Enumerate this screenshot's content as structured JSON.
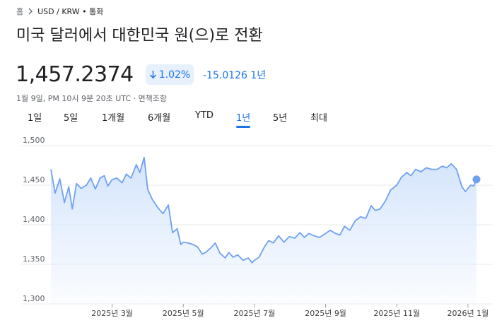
{
  "breadcrumb": {
    "home": "홈",
    "path": "USD / KRW • 통화"
  },
  "title": "미국 달러에서 대한민국 원(으)로 전환",
  "rate": "1,457.2374",
  "badge": {
    "label": "1.02%",
    "direction": "down"
  },
  "change": "-15.0126 1년",
  "timestamp": "1월 9일, PM 10시 9분 20초 UTC · 면책조항",
  "tabs": [
    {
      "label": "1일",
      "active": false
    },
    {
      "label": "5일",
      "active": false
    },
    {
      "label": "1개월",
      "active": false
    },
    {
      "label": "6개월",
      "active": false
    },
    {
      "label": "YTD",
      "active": false
    },
    {
      "label": "1년",
      "active": true
    },
    {
      "label": "5년",
      "active": false
    },
    {
      "label": "최대",
      "active": false
    }
  ],
  "colors": {
    "accent": "#1a73e8",
    "line": "#6ea1ef",
    "area_top": "#d2e3fc"
  },
  "chart_data": {
    "type": "area",
    "ylim": [
      1300,
      1500
    ],
    "y_ticks": [
      "1,500",
      "1,450",
      "1,400",
      "1,350",
      "1,300"
    ],
    "y_tick_values": [
      1500,
      1450,
      1400,
      1350,
      1300
    ],
    "x_labels": [
      "2025년 3월",
      "2025년 5월",
      "2025년 7월",
      "2025년 9월",
      "2025년 11월",
      "2026년 1월"
    ],
    "x_label_positions": [
      1.72,
      3.72,
      5.72,
      7.72,
      9.72,
      11.72
    ],
    "x_range": [
      0,
      12
    ],
    "grid": true,
    "series": [
      {
        "x": [
          0,
          0.12,
          0.25,
          0.38,
          0.5,
          0.6,
          0.72,
          0.85,
          1.0,
          1.12,
          1.25,
          1.38,
          1.5,
          1.6,
          1.72,
          1.85,
          2.0,
          2.12,
          2.25,
          2.4,
          2.5,
          2.62,
          2.72,
          2.85,
          3.0,
          3.15,
          3.3,
          3.42,
          3.55,
          3.65,
          3.72,
          3.85,
          4.0,
          4.12,
          4.25,
          4.35,
          4.5,
          4.62,
          4.75,
          4.9,
          5.0,
          5.12,
          5.25,
          5.4,
          5.55,
          5.65,
          5.72,
          5.85,
          6.0,
          6.12,
          6.25,
          6.4,
          6.55,
          6.7,
          6.85,
          7.0,
          7.12,
          7.25,
          7.4,
          7.55,
          7.72,
          7.85,
          8.0,
          8.12,
          8.25,
          8.4,
          8.55,
          8.7,
          8.85,
          9.0,
          9.12,
          9.25,
          9.4,
          9.55,
          9.72,
          9.85,
          10.0,
          10.12,
          10.25,
          10.4,
          10.55,
          10.7,
          10.85,
          11.0,
          11.12,
          11.25,
          11.4,
          11.55,
          11.65,
          11.72,
          11.8,
          11.88,
          11.96
        ],
        "y": [
          1470,
          1440,
          1458,
          1428,
          1448,
          1420,
          1452,
          1446,
          1450,
          1459,
          1445,
          1459,
          1462,
          1449,
          1457,
          1459,
          1453,
          1464,
          1459,
          1476,
          1466,
          1485,
          1445,
          1432,
          1422,
          1414,
          1425,
          1390,
          1395,
          1375,
          1378,
          1377,
          1375,
          1372,
          1363,
          1365,
          1371,
          1377,
          1364,
          1358,
          1365,
          1359,
          1362,
          1355,
          1358,
          1352,
          1355,
          1359,
          1372,
          1380,
          1377,
          1386,
          1378,
          1385,
          1383,
          1390,
          1384,
          1389,
          1386,
          1384,
          1389,
          1393,
          1389,
          1387,
          1398,
          1393,
          1405,
          1410,
          1408,
          1424,
          1418,
          1420,
          1430,
          1444,
          1450,
          1460,
          1466,
          1462,
          1470,
          1467,
          1472,
          1470,
          1470,
          1474,
          1472,
          1477,
          1470,
          1448,
          1442,
          1446,
          1450,
          1449,
          1457.2374
        ]
      }
    ]
  }
}
